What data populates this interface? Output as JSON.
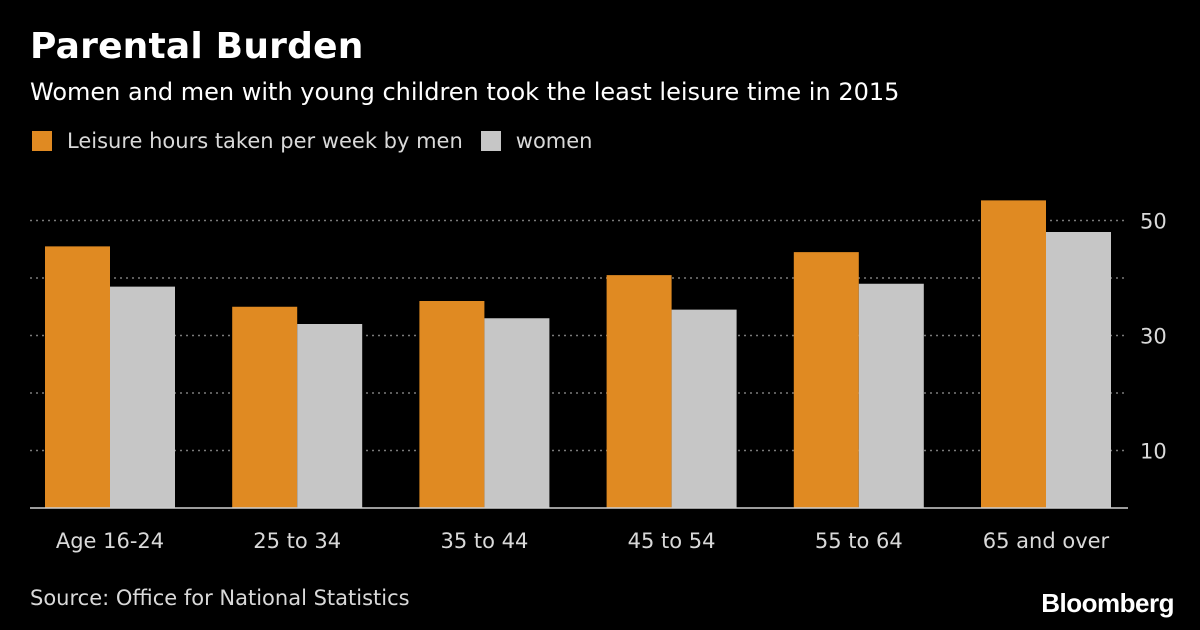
{
  "header": {
    "title": "Parental Burden",
    "subtitle": "Women and men with young children took the least leisure time in 2015"
  },
  "legend": {
    "men_label": "Leisure hours taken per week by men",
    "women_label": "women"
  },
  "footer": {
    "source": "Source: Office for National Statistics",
    "brand": "Bloomberg"
  },
  "colors": {
    "background": "#000000",
    "men": "#e08a22",
    "women": "#c6c6c6",
    "grid": "#7a7a7a",
    "text": "#ffffff",
    "muted_text": "#d9d9d9"
  },
  "chart_data": {
    "type": "bar",
    "title": "Parental Burden",
    "subtitle": "Women and men with young children took the least leisure time in 2015",
    "categories": [
      "Age 16-24",
      "25 to 34",
      "35 to 44",
      "45 to 54",
      "55 to 64",
      "65 and over"
    ],
    "series": [
      {
        "name": "Leisure hours taken per week by men",
        "color": "#e08a22",
        "values": [
          45.5,
          35,
          36,
          40.5,
          44.5,
          53.5
        ]
      },
      {
        "name": "women",
        "color": "#c6c6c6",
        "values": [
          38.5,
          32,
          33,
          34.5,
          39,
          48
        ]
      }
    ],
    "yticks": [
      10,
      30,
      50
    ],
    "ylim": [
      0,
      55
    ],
    "y_axis_side": "right",
    "grid": "horizontal dotted",
    "legend_position": "top-left",
    "xlabel": "",
    "ylabel": ""
  }
}
